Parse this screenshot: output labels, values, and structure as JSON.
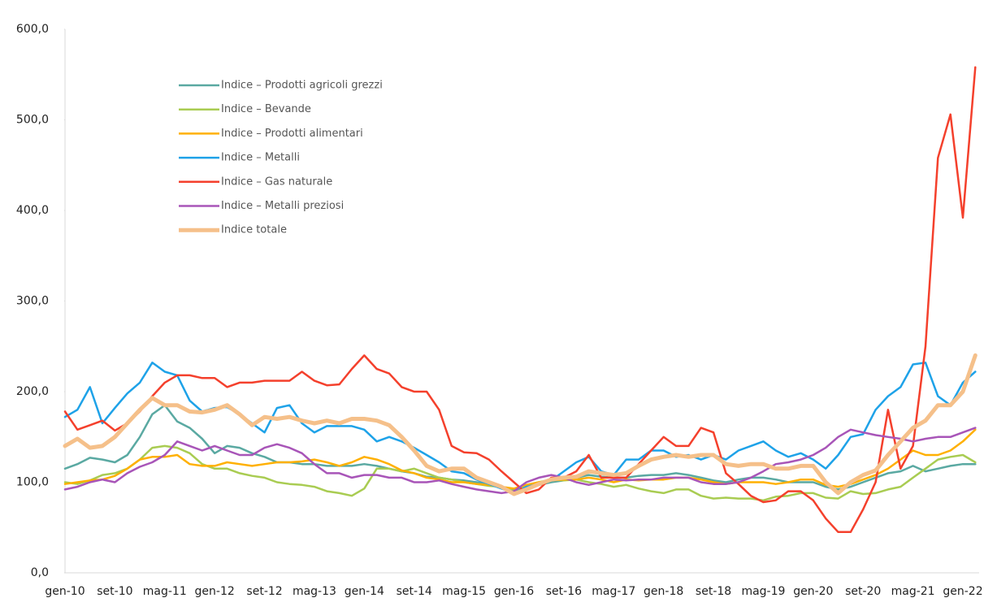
{
  "chart_data": {
    "type": "line",
    "categories": [
      "gen-10",
      null,
      null,
      null,
      "set-10",
      null,
      null,
      null,
      "mag-11",
      null,
      null,
      null,
      "gen-12",
      null,
      null,
      null,
      "set-12",
      null,
      null,
      null,
      "mag-13",
      null,
      null,
      null,
      "gen-14",
      null,
      null,
      null,
      "set-14",
      null,
      null,
      null,
      "mag-15",
      null,
      null,
      null,
      "gen-16",
      null,
      null,
      null,
      "set-16",
      null,
      null,
      null,
      "mag-17",
      null,
      null,
      null,
      "gen-18",
      null,
      null,
      null,
      "set-18",
      null,
      null,
      null,
      "mag-19",
      null,
      null,
      null,
      "gen-20",
      null,
      null,
      null,
      "set-20",
      null,
      null,
      null,
      "mag-21",
      null,
      null,
      null,
      "gen-22",
      null
    ],
    "ylim": [
      0,
      600
    ],
    "yticks": [
      {
        "value": 0,
        "label": "0,0"
      },
      {
        "value": 100,
        "label": "100,0"
      },
      {
        "value": 200,
        "label": "200,0"
      },
      {
        "value": 300,
        "label": "300,0"
      },
      {
        "value": 400,
        "label": "400,0"
      },
      {
        "value": 500,
        "label": "500,0"
      },
      {
        "value": 600,
        "label": "600,0"
      }
    ],
    "grid": false,
    "legend": "upper left",
    "series": [
      {
        "name": "Indice – Prodotti agricoli grezzi",
        "color": "#5aa9a2",
        "width": 2.5,
        "values": [
          115,
          120,
          127,
          125,
          122,
          130,
          150,
          175,
          185,
          167,
          160,
          148,
          132,
          140,
          138,
          132,
          128,
          122,
          122,
          120,
          120,
          118,
          118,
          118,
          120,
          118,
          115,
          112,
          110,
          106,
          105,
          103,
          102,
          100,
          98,
          95,
          92,
          95,
          97,
          100,
          102,
          105,
          108,
          106,
          105,
          105,
          107,
          108,
          108,
          110,
          108,
          105,
          102,
          100,
          103,
          105,
          105,
          103,
          100,
          100,
          100,
          95,
          92,
          95,
          100,
          105,
          110,
          112,
          118,
          112,
          115,
          118,
          120,
          120
        ]
      },
      {
        "name": "Indice – Bevande",
        "color": "#a9cc52",
        "width": 2.5,
        "values": [
          100,
          98,
          102,
          108,
          110,
          115,
          125,
          138,
          140,
          138,
          132,
          120,
          115,
          115,
          110,
          107,
          105,
          100,
          98,
          97,
          95,
          90,
          88,
          85,
          93,
          115,
          115,
          112,
          115,
          110,
          105,
          103,
          100,
          98,
          96,
          95,
          90,
          97,
          100,
          103,
          102,
          103,
          100,
          98,
          95,
          97,
          93,
          90,
          88,
          92,
          92,
          85,
          82,
          83,
          82,
          82,
          80,
          84,
          85,
          88,
          88,
          83,
          82,
          90,
          87,
          88,
          92,
          95,
          105,
          115,
          125,
          128,
          130,
          122
        ]
      },
      {
        "name": "Indice – Prodotti alimentari",
        "color": "#ffb000",
        "width": 2.5,
        "values": [
          98,
          100,
          102,
          103,
          107,
          115,
          125,
          128,
          128,
          130,
          120,
          118,
          118,
          122,
          120,
          118,
          120,
          122,
          122,
          123,
          125,
          122,
          118,
          122,
          128,
          125,
          120,
          113,
          110,
          105,
          103,
          100,
          100,
          98,
          97,
          95,
          93,
          97,
          100,
          102,
          103,
          103,
          105,
          103,
          100,
          103,
          102,
          103,
          103,
          105,
          105,
          103,
          100,
          98,
          100,
          100,
          100,
          98,
          100,
          103,
          103,
          97,
          95,
          98,
          103,
          108,
          115,
          125,
          135,
          130,
          130,
          135,
          145,
          158
        ]
      },
      {
        "name": "Indice – Metalli",
        "color": "#1ea2e8",
        "width": 2.5,
        "values": [
          172,
          180,
          205,
          165,
          182,
          198,
          210,
          232,
          222,
          218,
          190,
          178,
          182,
          183,
          175,
          165,
          155,
          182,
          185,
          165,
          155,
          162,
          162,
          162,
          158,
          145,
          150,
          145,
          138,
          130,
          122,
          112,
          110,
          103,
          98,
          93,
          88,
          95,
          98,
          102,
          112,
          122,
          128,
          112,
          108,
          125,
          125,
          135,
          135,
          128,
          130,
          125,
          130,
          125,
          135,
          140,
          145,
          135,
          128,
          132,
          125,
          115,
          130,
          150,
          153,
          180,
          195,
          205,
          230,
          232,
          195,
          185,
          210,
          222
        ]
      },
      {
        "name": "Indice – Gas naturale",
        "color": "#f4402c",
        "width": 2.5,
        "values": [
          178,
          158,
          163,
          168,
          157,
          165,
          178,
          195,
          210,
          218,
          218,
          215,
          215,
          205,
          210,
          210,
          212,
          212,
          212,
          222,
          212,
          207,
          208,
          225,
          240,
          225,
          220,
          205,
          200,
          200,
          180,
          140,
          133,
          132,
          125,
          112,
          100,
          88,
          92,
          105,
          105,
          112,
          130,
          105,
          105,
          105,
          120,
          135,
          150,
          140,
          140,
          160,
          155,
          110,
          98,
          85,
          78,
          80,
          90,
          90,
          80,
          60,
          45,
          45,
          70,
          100,
          180,
          115,
          140,
          250,
          458,
          506,
          392,
          558
        ]
      },
      {
        "name": "Indice – Metalli preziosi",
        "color": "#a855b8",
        "width": 2.5,
        "values": [
          92,
          95,
          100,
          103,
          100,
          110,
          117,
          122,
          130,
          145,
          140,
          135,
          140,
          135,
          130,
          130,
          138,
          142,
          138,
          132,
          120,
          110,
          110,
          105,
          108,
          108,
          105,
          105,
          100,
          100,
          102,
          98,
          95,
          92,
          90,
          88,
          90,
          100,
          105,
          108,
          105,
          100,
          97,
          100,
          103,
          102,
          103,
          103,
          105,
          105,
          105,
          100,
          98,
          98,
          100,
          105,
          112,
          120,
          122,
          125,
          130,
          138,
          150,
          158,
          155,
          152,
          150,
          148,
          145,
          148,
          150,
          150,
          155,
          160
        ]
      },
      {
        "name": "Indice totale",
        "color": "#f5c08a",
        "width": 5,
        "values": [
          140,
          148,
          138,
          140,
          150,
          165,
          180,
          193,
          185,
          185,
          178,
          177,
          180,
          185,
          175,
          163,
          172,
          170,
          172,
          168,
          165,
          168,
          165,
          170,
          170,
          168,
          163,
          150,
          135,
          118,
          112,
          115,
          115,
          105,
          100,
          95,
          87,
          92,
          98,
          103,
          105,
          106,
          112,
          110,
          108,
          110,
          118,
          125,
          128,
          130,
          128,
          130,
          130,
          120,
          118,
          120,
          120,
          115,
          115,
          118,
          118,
          100,
          88,
          100,
          108,
          113,
          130,
          145,
          160,
          168,
          185,
          185,
          200,
          240
        ]
      }
    ]
  }
}
